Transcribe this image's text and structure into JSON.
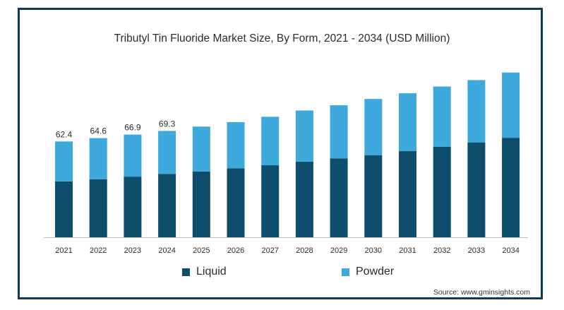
{
  "chart_data": {
    "type": "bar",
    "stacked": true,
    "title": "Tributyl Tin Fluoride Market Size, By Form, 2021 - 2034 (USD Million)",
    "categories": [
      "2021",
      "2022",
      "2023",
      "2024",
      "2025",
      "2026",
      "2027",
      "2028",
      "2029",
      "2030",
      "2031",
      "2032",
      "2033",
      "2034"
    ],
    "series": [
      {
        "name": "Liquid",
        "color": "#0e4d6b",
        "values": [
          36.4,
          37.8,
          39.5,
          41.3,
          42.9,
          44.9,
          46.9,
          49.3,
          51.4,
          53.5,
          56.1,
          58.9,
          61.8,
          64.8
        ]
      },
      {
        "name": "Powder",
        "color": "#3ea9dc",
        "values": [
          26.0,
          26.8,
          27.4,
          28.0,
          29.2,
          30.1,
          31.6,
          33.3,
          34.6,
          36.6,
          37.7,
          39.3,
          40.6,
          42.5
        ]
      }
    ],
    "totals_labels": [
      "62.4",
      "64.6",
      "66.9",
      "69.3"
    ],
    "ylim": [
      0,
      115
    ],
    "grid": false,
    "legend_position": "bottom"
  },
  "source": "Source: www.gminsights.com"
}
